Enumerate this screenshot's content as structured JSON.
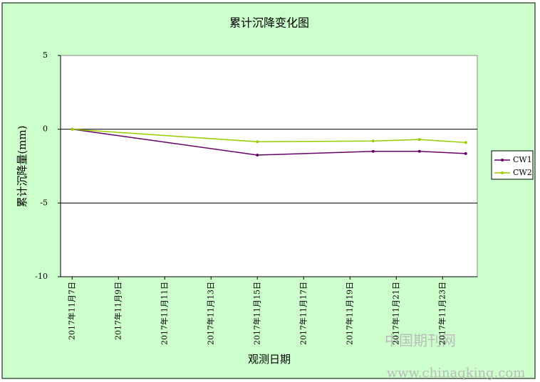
{
  "chart_data": {
    "type": "line",
    "title": "累计沉降变化图",
    "x_label": "观测日期",
    "y_label": "累计沉降量(mm)",
    "x": [
      "2017-11-07",
      "2017-11-15",
      "2017-11-20",
      "2017-11-22",
      "2017-11-24"
    ],
    "series": [
      {
        "name": "CW1",
        "color": "#660066",
        "values": [
          0,
          -1.75,
          -1.5,
          -1.5,
          -1.65
        ]
      },
      {
        "name": "CW2",
        "color": "#99cc00",
        "values": [
          0,
          -0.85,
          -0.8,
          -0.7,
          -0.9
        ]
      }
    ],
    "xlim": [
      "2017-11-07",
      "2017-11-24"
    ],
    "xticks": [
      {
        "value": "2017-11-07",
        "label": "2017年11月7日"
      },
      {
        "value": "2017-11-09",
        "label": "2017年11月9日"
      },
      {
        "value": "2017-11-11",
        "label": "2017年11月11日"
      },
      {
        "value": "2017-11-13",
        "label": "2017年11月13日"
      },
      {
        "value": "2017-11-15",
        "label": "2017年11月15日"
      },
      {
        "value": "2017-11-17",
        "label": "2017年11月17日"
      },
      {
        "value": "2017-11-19",
        "label": "2017年11月19日"
      },
      {
        "value": "2017-11-21",
        "label": "2017年11月21日"
      },
      {
        "value": "2017-11-23",
        "label": "2017年11月23日"
      }
    ],
    "ylim": [
      -10,
      5
    ],
    "yticks": [
      -10,
      -5,
      0,
      5
    ],
    "grid": true,
    "legend": "right",
    "watermark": [
      "中国期刊网",
      "www.chinaqking.com"
    ]
  }
}
